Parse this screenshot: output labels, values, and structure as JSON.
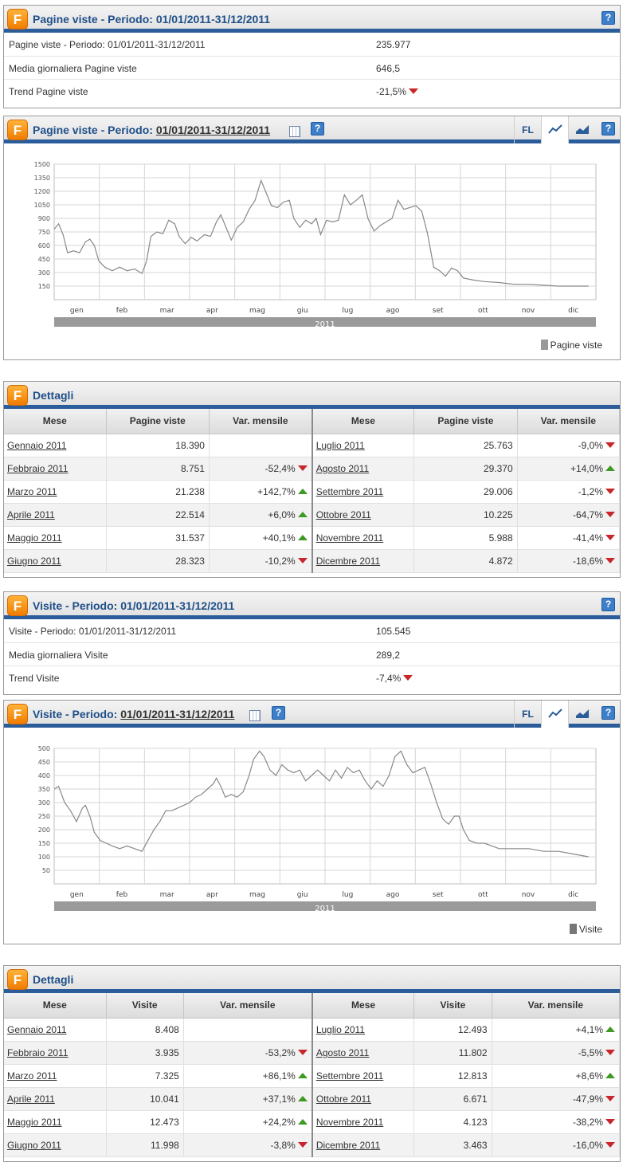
{
  "colors": {
    "header_bar": "#2a5d9a",
    "title": "#1f4f8a",
    "down": "#c8262a",
    "up": "#3e9a22",
    "line": "#888888"
  },
  "icons": {
    "logo": "F-logo-icon",
    "help": "help-icon",
    "calendar": "calendar-icon",
    "line_chart": "line-chart-icon",
    "area_chart": "area-chart-icon",
    "down": "down-arrow-icon",
    "up": "up-arrow-icon"
  },
  "pv_summary": {
    "title": "Pagine viste - Periodo: 01/01/2011-31/12/2011",
    "help": "?",
    "rows": [
      {
        "label": "Pagine viste - Periodo: 01/01/2011-31/12/2011",
        "value": "235.977",
        "trend": ""
      },
      {
        "label": "Media giornaliera Pagine viste",
        "value": "646,5",
        "trend": ""
      },
      {
        "label": "Trend Pagine viste",
        "value": "-21,5%",
        "trend": "down"
      }
    ]
  },
  "pv_chart": {
    "title_prefix": "Pagine viste - Periodo:",
    "title_date": "01/01/2011-31/12/2011",
    "btn_fl": "FL",
    "help": "?",
    "legend": "Pagine viste",
    "year": "2011",
    "chart_data": {
      "type": "line",
      "y_ticks": [
        150,
        300,
        450,
        600,
        750,
        900,
        1050,
        1200,
        1350,
        1500
      ],
      "ylim": [
        0,
        1500
      ],
      "x_ticks": [
        "gen",
        "feb",
        "mar",
        "apr",
        "mag",
        "giu",
        "lug",
        "ago",
        "set",
        "ott",
        "nov",
        "dic"
      ],
      "grid": true,
      "series": [
        {
          "name": "Pagine viste",
          "x_unit": "day_of_year",
          "points": [
            [
              1,
              780
            ],
            [
              4,
              840
            ],
            [
              7,
              720
            ],
            [
              10,
              520
            ],
            [
              14,
              540
            ],
            [
              18,
              520
            ],
            [
              22,
              640
            ],
            [
              25,
              670
            ],
            [
              28,
              600
            ],
            [
              31,
              430
            ],
            [
              35,
              360
            ],
            [
              40,
              320
            ],
            [
              45,
              360
            ],
            [
              50,
              320
            ],
            [
              55,
              340
            ],
            [
              60,
              290
            ],
            [
              63,
              420
            ],
            [
              66,
              700
            ],
            [
              70,
              750
            ],
            [
              74,
              730
            ],
            [
              78,
              880
            ],
            [
              82,
              840
            ],
            [
              85,
              700
            ],
            [
              89,
              620
            ],
            [
              93,
              690
            ],
            [
              97,
              650
            ],
            [
              102,
              720
            ],
            [
              106,
              700
            ],
            [
              110,
              860
            ],
            [
              113,
              940
            ],
            [
              116,
              820
            ],
            [
              120,
              660
            ],
            [
              124,
              800
            ],
            [
              128,
              860
            ],
            [
              132,
              1000
            ],
            [
              136,
              1100
            ],
            [
              140,
              1320
            ],
            [
              143,
              1200
            ],
            [
              147,
              1040
            ],
            [
              151,
              1020
            ],
            [
              155,
              1080
            ],
            [
              159,
              1100
            ],
            [
              162,
              900
            ],
            [
              166,
              800
            ],
            [
              170,
              880
            ],
            [
              174,
              840
            ],
            [
              177,
              900
            ],
            [
              180,
              720
            ],
            [
              184,
              880
            ],
            [
              188,
              860
            ],
            [
              192,
              880
            ],
            [
              196,
              1160
            ],
            [
              200,
              1050
            ],
            [
              204,
              1100
            ],
            [
              208,
              1160
            ],
            [
              212,
              890
            ],
            [
              216,
              760
            ],
            [
              220,
              820
            ],
            [
              224,
              860
            ],
            [
              228,
              900
            ],
            [
              232,
              1100
            ],
            [
              236,
              1000
            ],
            [
              240,
              1020
            ],
            [
              244,
              1040
            ],
            [
              248,
              980
            ],
            [
              252,
              720
            ],
            [
              256,
              360
            ],
            [
              260,
              320
            ],
            [
              264,
              260
            ],
            [
              268,
              350
            ],
            [
              272,
              320
            ],
            [
              276,
              240
            ],
            [
              282,
              220
            ],
            [
              290,
              200
            ],
            [
              300,
              190
            ],
            [
              310,
              170
            ],
            [
              320,
              170
            ],
            [
              330,
              160
            ],
            [
              340,
              150
            ],
            [
              350,
              150
            ],
            [
              360,
              150
            ]
          ]
        }
      ]
    }
  },
  "pv_details": {
    "title": "Dettagli",
    "headers": [
      "Mese",
      "Pagine viste",
      "Var. mensile"
    ],
    "left": [
      {
        "month": "Gennaio 2011",
        "value": "18.390",
        "var": "",
        "dir": ""
      },
      {
        "month": "Febbraio 2011",
        "value": "8.751",
        "var": "-52,4%",
        "dir": "down"
      },
      {
        "month": "Marzo 2011",
        "value": "21.238",
        "var": "+142,7%",
        "dir": "up"
      },
      {
        "month": "Aprile 2011",
        "value": "22.514",
        "var": "+6,0%",
        "dir": "up"
      },
      {
        "month": "Maggio 2011",
        "value": "31.537",
        "var": "+40,1%",
        "dir": "up"
      },
      {
        "month": "Giugno 2011",
        "value": "28.323",
        "var": "-10,2%",
        "dir": "down"
      }
    ],
    "right": [
      {
        "month": "Luglio 2011",
        "value": "25.763",
        "var": "-9,0%",
        "dir": "down"
      },
      {
        "month": "Agosto 2011",
        "value": "29.370",
        "var": "+14,0%",
        "dir": "up"
      },
      {
        "month": "Settembre 2011",
        "value": "29.006",
        "var": "-1,2%",
        "dir": "down"
      },
      {
        "month": "Ottobre 2011",
        "value": "10.225",
        "var": "-64,7%",
        "dir": "down"
      },
      {
        "month": "Novembre 2011",
        "value": "5.988",
        "var": "-41,4%",
        "dir": "down"
      },
      {
        "month": "Dicembre 2011",
        "value": "4.872",
        "var": "-18,6%",
        "dir": "down"
      }
    ]
  },
  "v_summary": {
    "title": "Visite - Periodo: 01/01/2011-31/12/2011",
    "help": "?",
    "rows": [
      {
        "label": "Visite - Periodo: 01/01/2011-31/12/2011",
        "value": "105.545",
        "trend": ""
      },
      {
        "label": "Media giornaliera Visite",
        "value": "289,2",
        "trend": ""
      },
      {
        "label": "Trend Visite",
        "value": "-7,4%",
        "trend": "down"
      }
    ]
  },
  "v_chart": {
    "title_prefix": "Visite - Periodo:",
    "title_date": "01/01/2011-31/12/2011",
    "btn_fl": "FL",
    "help": "?",
    "legend": "Visite",
    "year": "2011",
    "chart_data": {
      "type": "line",
      "y_ticks": [
        50,
        100,
        150,
        200,
        250,
        300,
        350,
        400,
        450,
        500
      ],
      "ylim": [
        0,
        500
      ],
      "x_ticks": [
        "gen",
        "feb",
        "mar",
        "apr",
        "mag",
        "giu",
        "lug",
        "ago",
        "set",
        "ott",
        "nov",
        "dic"
      ],
      "grid": true,
      "series": [
        {
          "name": "Visite",
          "x_unit": "day_of_year",
          "points": [
            [
              1,
              350
            ],
            [
              4,
              360
            ],
            [
              8,
              300
            ],
            [
              12,
              270
            ],
            [
              16,
              230
            ],
            [
              20,
              280
            ],
            [
              22,
              290
            ],
            [
              25,
              250
            ],
            [
              28,
              190
            ],
            [
              32,
              160
            ],
            [
              36,
              150
            ],
            [
              40,
              140
            ],
            [
              45,
              130
            ],
            [
              50,
              140
            ],
            [
              55,
              130
            ],
            [
              60,
              120
            ],
            [
              64,
              160
            ],
            [
              68,
              200
            ],
            [
              72,
              230
            ],
            [
              76,
              270
            ],
            [
              80,
              270
            ],
            [
              84,
              280
            ],
            [
              88,
              290
            ],
            [
              92,
              300
            ],
            [
              96,
              320
            ],
            [
              100,
              330
            ],
            [
              104,
              350
            ],
            [
              108,
              370
            ],
            [
              110,
              390
            ],
            [
              113,
              360
            ],
            [
              116,
              320
            ],
            [
              120,
              330
            ],
            [
              124,
              320
            ],
            [
              128,
              340
            ],
            [
              132,
              400
            ],
            [
              135,
              460
            ],
            [
              139,
              490
            ],
            [
              142,
              470
            ],
            [
              146,
              420
            ],
            [
              150,
              400
            ],
            [
              154,
              440
            ],
            [
              158,
              420
            ],
            [
              162,
              410
            ],
            [
              166,
              420
            ],
            [
              170,
              380
            ],
            [
              174,
              400
            ],
            [
              178,
              420
            ],
            [
              182,
              400
            ],
            [
              186,
              380
            ],
            [
              190,
              420
            ],
            [
              194,
              390
            ],
            [
              198,
              430
            ],
            [
              202,
              410
            ],
            [
              206,
              420
            ],
            [
              210,
              380
            ],
            [
              214,
              350
            ],
            [
              218,
              380
            ],
            [
              222,
              360
            ],
            [
              226,
              400
            ],
            [
              230,
              470
            ],
            [
              234,
              490
            ],
            [
              238,
              440
            ],
            [
              242,
              410
            ],
            [
              246,
              420
            ],
            [
              250,
              430
            ],
            [
              254,
              370
            ],
            [
              258,
              300
            ],
            [
              262,
              240
            ],
            [
              266,
              220
            ],
            [
              270,
              250
            ],
            [
              273,
              250
            ],
            [
              276,
              200
            ],
            [
              280,
              160
            ],
            [
              285,
              150
            ],
            [
              290,
              150
            ],
            [
              300,
              130
            ],
            [
              310,
              130
            ],
            [
              320,
              130
            ],
            [
              330,
              120
            ],
            [
              340,
              120
            ],
            [
              350,
              110
            ],
            [
              360,
              100
            ]
          ]
        }
      ]
    }
  },
  "v_details": {
    "title": "Dettagli",
    "headers": [
      "Mese",
      "Visite",
      "Var. mensile"
    ],
    "left": [
      {
        "month": "Gennaio 2011",
        "value": "8.408",
        "var": "",
        "dir": ""
      },
      {
        "month": "Febbraio 2011",
        "value": "3.935",
        "var": "-53,2%",
        "dir": "down"
      },
      {
        "month": "Marzo 2011",
        "value": "7.325",
        "var": "+86,1%",
        "dir": "up"
      },
      {
        "month": "Aprile 2011",
        "value": "10.041",
        "var": "+37,1%",
        "dir": "up"
      },
      {
        "month": "Maggio 2011",
        "value": "12.473",
        "var": "+24,2%",
        "dir": "up"
      },
      {
        "month": "Giugno 2011",
        "value": "11.998",
        "var": "-3,8%",
        "dir": "down"
      }
    ],
    "right": [
      {
        "month": "Luglio 2011",
        "value": "12.493",
        "var": "+4,1%",
        "dir": "up"
      },
      {
        "month": "Agosto 2011",
        "value": "11.802",
        "var": "-5,5%",
        "dir": "down"
      },
      {
        "month": "Settembre 2011",
        "value": "12.813",
        "var": "+8,6%",
        "dir": "up"
      },
      {
        "month": "Ottobre 2011",
        "value": "6.671",
        "var": "-47,9%",
        "dir": "down"
      },
      {
        "month": "Novembre 2011",
        "value": "4.123",
        "var": "-38,2%",
        "dir": "down"
      },
      {
        "month": "Dicembre 2011",
        "value": "3.463",
        "var": "-16,0%",
        "dir": "down"
      }
    ]
  }
}
